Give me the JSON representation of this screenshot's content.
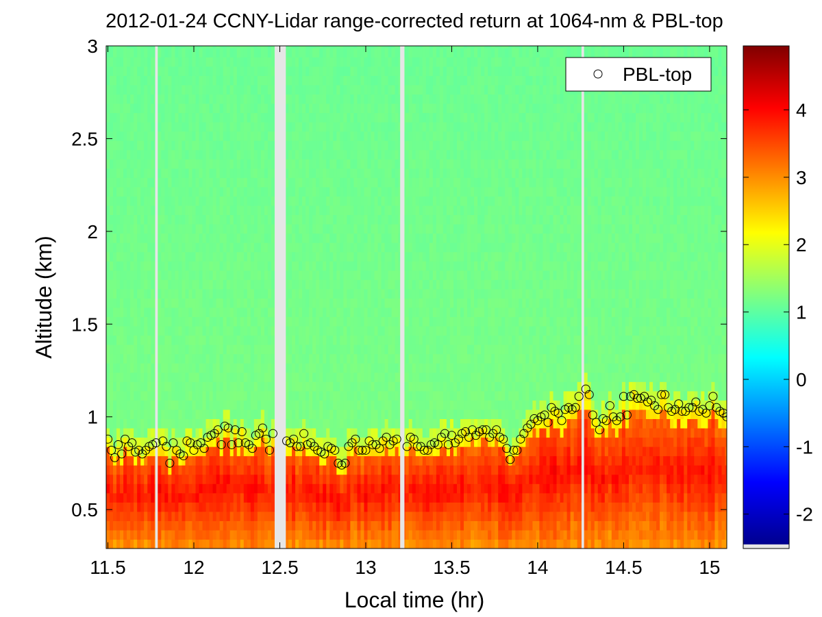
{
  "chart_data": {
    "type": "heatmap",
    "title": "2012-01-24 CCNY-Lidar range-corrected return at 1064-nm & PBL-top",
    "xlabel": "Local time (hr)",
    "ylabel": "Altitude (km)",
    "xlim": [
      11.49,
      15.1
    ],
    "ylim": [
      0.29,
      3.0
    ],
    "x_ticks": [
      11.5,
      12,
      12.5,
      13,
      13.5,
      14,
      14.5,
      15
    ],
    "x_tick_labels": [
      "11.5",
      "12",
      "12.5",
      "13",
      "13.5",
      "14",
      "14.5",
      "15"
    ],
    "y_ticks": [
      0.5,
      1,
      1.5,
      2,
      2.5,
      3
    ],
    "y_tick_labels": [
      "0.5",
      "1",
      "1.5",
      "2",
      "2.5",
      "3"
    ],
    "colorbar": {
      "colormap": "jet",
      "clim": [
        -2.45,
        4.95
      ],
      "ticks": [
        -2,
        -1,
        0,
        1,
        2,
        3,
        4
      ],
      "tick_labels": [
        "-2",
        "-1",
        "0",
        "1",
        "2",
        "3",
        "4"
      ]
    },
    "background_value": 1.2,
    "boundary_layer_value_range": [
      2.5,
      3.9
    ],
    "data_gaps_hr": [
      [
        11.775,
        11.79
      ],
      [
        12.47,
        12.535
      ],
      [
        13.2,
        13.225
      ],
      [
        14.255,
        14.27
      ]
    ],
    "legend": {
      "position": "top-right",
      "entries": [
        "PBL-top"
      ]
    },
    "series": [
      {
        "name": "PBL-top",
        "marker": "open-circle",
        "x": [
          11.5,
          11.52,
          11.54,
          11.56,
          11.58,
          11.6,
          11.62,
          11.64,
          11.66,
          11.68,
          11.7,
          11.72,
          11.74,
          11.76,
          11.78,
          11.82,
          11.84,
          11.86,
          11.88,
          11.9,
          11.92,
          11.94,
          11.96,
          11.98,
          12.0,
          12.02,
          12.04,
          12.06,
          12.08,
          12.1,
          12.12,
          12.14,
          12.16,
          12.18,
          12.2,
          12.22,
          12.24,
          12.26,
          12.28,
          12.3,
          12.32,
          12.34,
          12.36,
          12.38,
          12.4,
          12.42,
          12.44,
          12.46,
          12.54,
          12.56,
          12.58,
          12.6,
          12.62,
          12.64,
          12.66,
          12.68,
          12.7,
          12.72,
          12.74,
          12.76,
          12.78,
          12.8,
          12.82,
          12.84,
          12.86,
          12.88,
          12.9,
          12.92,
          12.94,
          12.96,
          12.98,
          13.0,
          13.02,
          13.04,
          13.06,
          13.08,
          13.1,
          13.12,
          13.14,
          13.16,
          13.18,
          13.24,
          13.26,
          13.28,
          13.3,
          13.32,
          13.34,
          13.36,
          13.38,
          13.4,
          13.42,
          13.44,
          13.46,
          13.48,
          13.5,
          13.52,
          13.54,
          13.56,
          13.58,
          13.6,
          13.62,
          13.64,
          13.66,
          13.68,
          13.7,
          13.72,
          13.74,
          13.76,
          13.78,
          13.8,
          13.82,
          13.84,
          13.86,
          13.88,
          13.9,
          13.92,
          13.94,
          13.96,
          13.98,
          14.0,
          14.02,
          14.04,
          14.06,
          14.08,
          14.1,
          14.12,
          14.14,
          14.16,
          14.18,
          14.2,
          14.22,
          14.24,
          14.28,
          14.3,
          14.32,
          14.34,
          14.36,
          14.38,
          14.4,
          14.42,
          14.44,
          14.46,
          14.48,
          14.5,
          14.52,
          14.54,
          14.56,
          14.58,
          14.6,
          14.62,
          14.64,
          14.66,
          14.68,
          14.7,
          14.72,
          14.74,
          14.76,
          14.78,
          14.8,
          14.82,
          14.84,
          14.86,
          14.88,
          14.9,
          14.92,
          14.94,
          14.96,
          14.98,
          15.0,
          15.02,
          15.04,
          15.06,
          15.08,
          15.1
        ],
        "y": [
          0.88,
          0.82,
          0.78,
          0.85,
          0.8,
          0.88,
          0.84,
          0.86,
          0.81,
          0.82,
          0.8,
          0.82,
          0.84,
          0.85,
          0.86,
          0.87,
          0.84,
          0.75,
          0.86,
          0.82,
          0.8,
          0.79,
          0.87,
          0.86,
          0.82,
          0.85,
          0.86,
          0.83,
          0.89,
          0.9,
          0.91,
          0.93,
          0.85,
          0.95,
          0.94,
          0.85,
          0.93,
          0.86,
          0.92,
          0.86,
          0.85,
          0.83,
          0.9,
          0.91,
          0.94,
          0.88,
          0.82,
          0.91,
          0.87,
          0.86,
          0.88,
          0.84,
          0.84,
          0.91,
          0.85,
          0.86,
          0.84,
          0.82,
          0.81,
          0.8,
          0.84,
          0.83,
          0.82,
          0.75,
          0.74,
          0.75,
          0.84,
          0.86,
          0.88,
          0.82,
          0.82,
          0.82,
          0.87,
          0.85,
          0.85,
          0.83,
          0.87,
          0.89,
          0.85,
          0.87,
          0.88,
          0.84,
          0.89,
          0.88,
          0.84,
          0.84,
          0.82,
          0.82,
          0.85,
          0.86,
          0.85,
          0.89,
          0.91,
          0.85,
          0.9,
          0.86,
          0.88,
          0.91,
          0.92,
          0.89,
          0.93,
          0.9,
          0.92,
          0.93,
          0.93,
          0.89,
          0.91,
          0.93,
          0.89,
          0.88,
          0.83,
          0.77,
          0.82,
          0.82,
          0.88,
          0.91,
          0.94,
          0.96,
          0.99,
          0.98,
          1.0,
          1.01,
          0.97,
          1.05,
          1.03,
          1.02,
          0.98,
          1.04,
          1.05,
          1.04,
          1.05,
          1.11,
          1.15,
          1.12,
          1.01,
          0.97,
          0.93,
          0.99,
          0.98,
          1.06,
          1.0,
          0.98,
          1.0,
          1.11,
          1.01,
          1.11,
          1.12,
          1.1,
          1.1,
          1.11,
          1.08,
          1.09,
          1.06,
          1.04,
          1.12,
          1.12,
          1.05,
          1.03,
          1.04,
          1.07,
          1.03,
          1.03,
          1.05,
          1.05,
          1.08,
          1.03,
          1.04,
          1.02,
          1.06,
          1.11,
          1.05,
          1.03,
          1.02,
          1.0
        ]
      }
    ]
  }
}
